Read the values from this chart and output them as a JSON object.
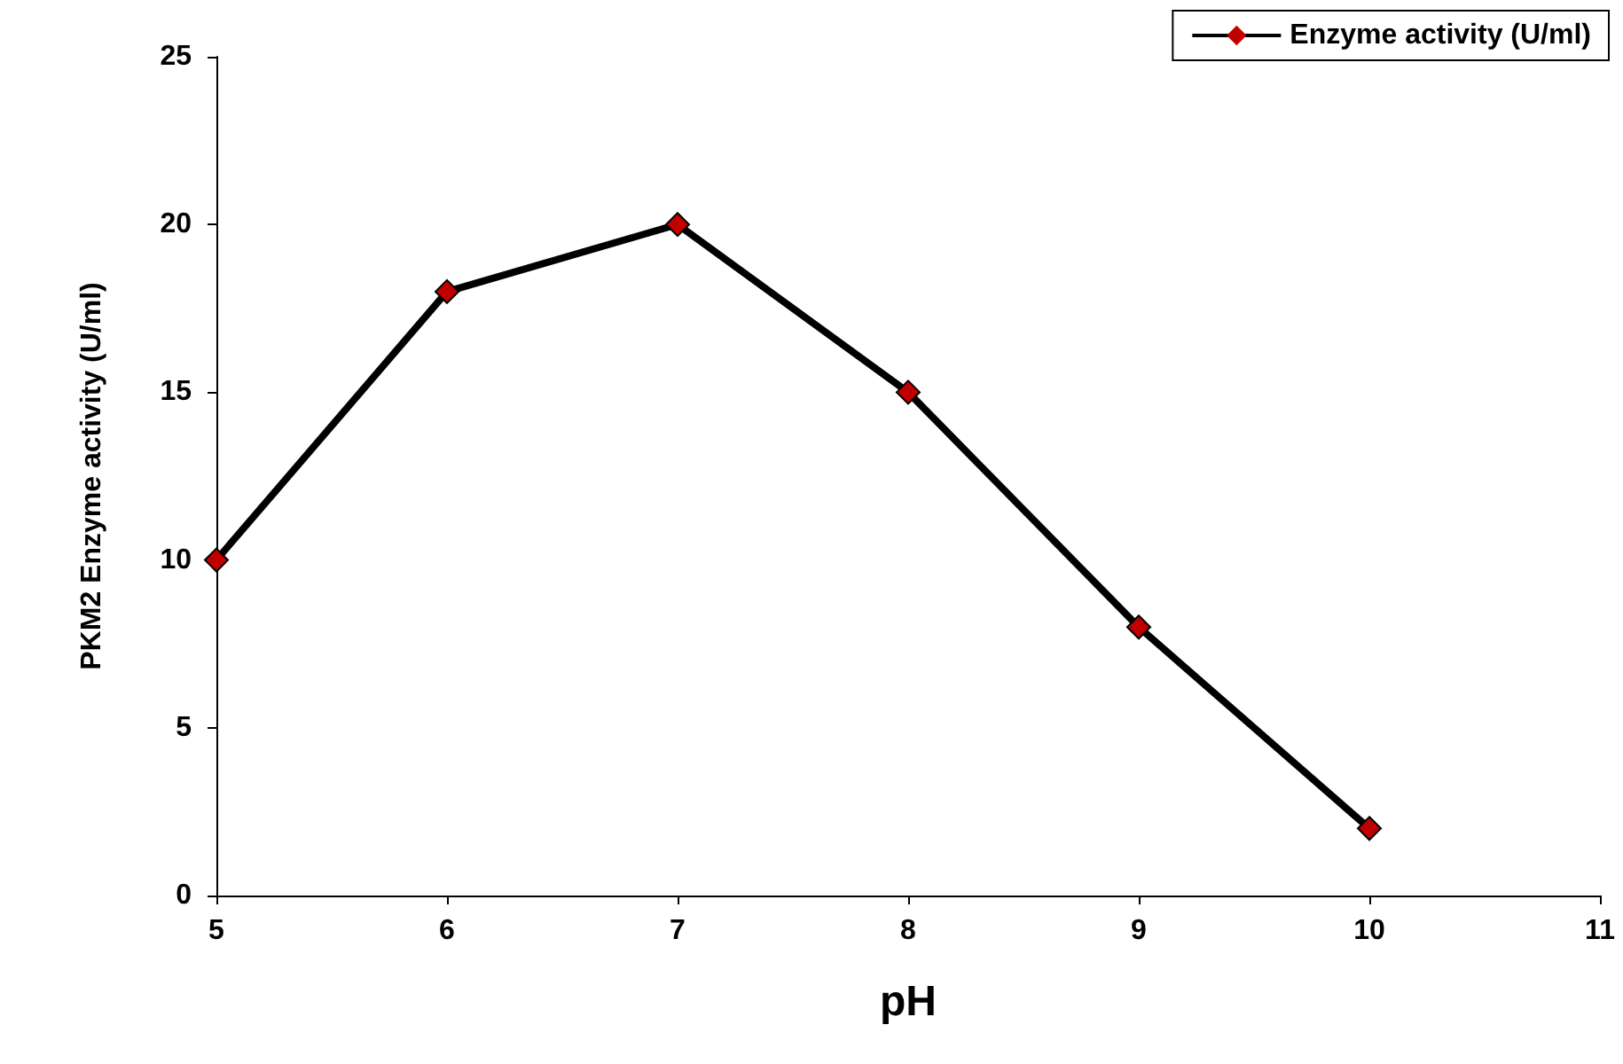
{
  "chart_data": {
    "type": "line",
    "xlabel": "pH",
    "ylabel": "PKM2 Enzyme activity (U/ml)",
    "x": [
      5,
      6,
      7,
      8,
      9,
      10
    ],
    "series": [
      {
        "name": "Enzyme activity (U/ml)",
        "color": "#000000",
        "colors": [
          "#c00000",
          "#c00000",
          "#c00000",
          "#c00000",
          "#c00000",
          "#c00000"
        ],
        "values": [
          10,
          18,
          20,
          15,
          8,
          2
        ]
      }
    ],
    "xlim": [
      5,
      11
    ],
    "xticks": [
      5,
      6,
      7,
      8,
      9,
      10,
      11
    ],
    "ylim": [
      0,
      25
    ],
    "yticks": [
      0,
      5,
      10,
      15,
      20,
      25
    ],
    "grid": false,
    "legend": "top right",
    "marker": "diamond",
    "line_style": "solid"
  }
}
